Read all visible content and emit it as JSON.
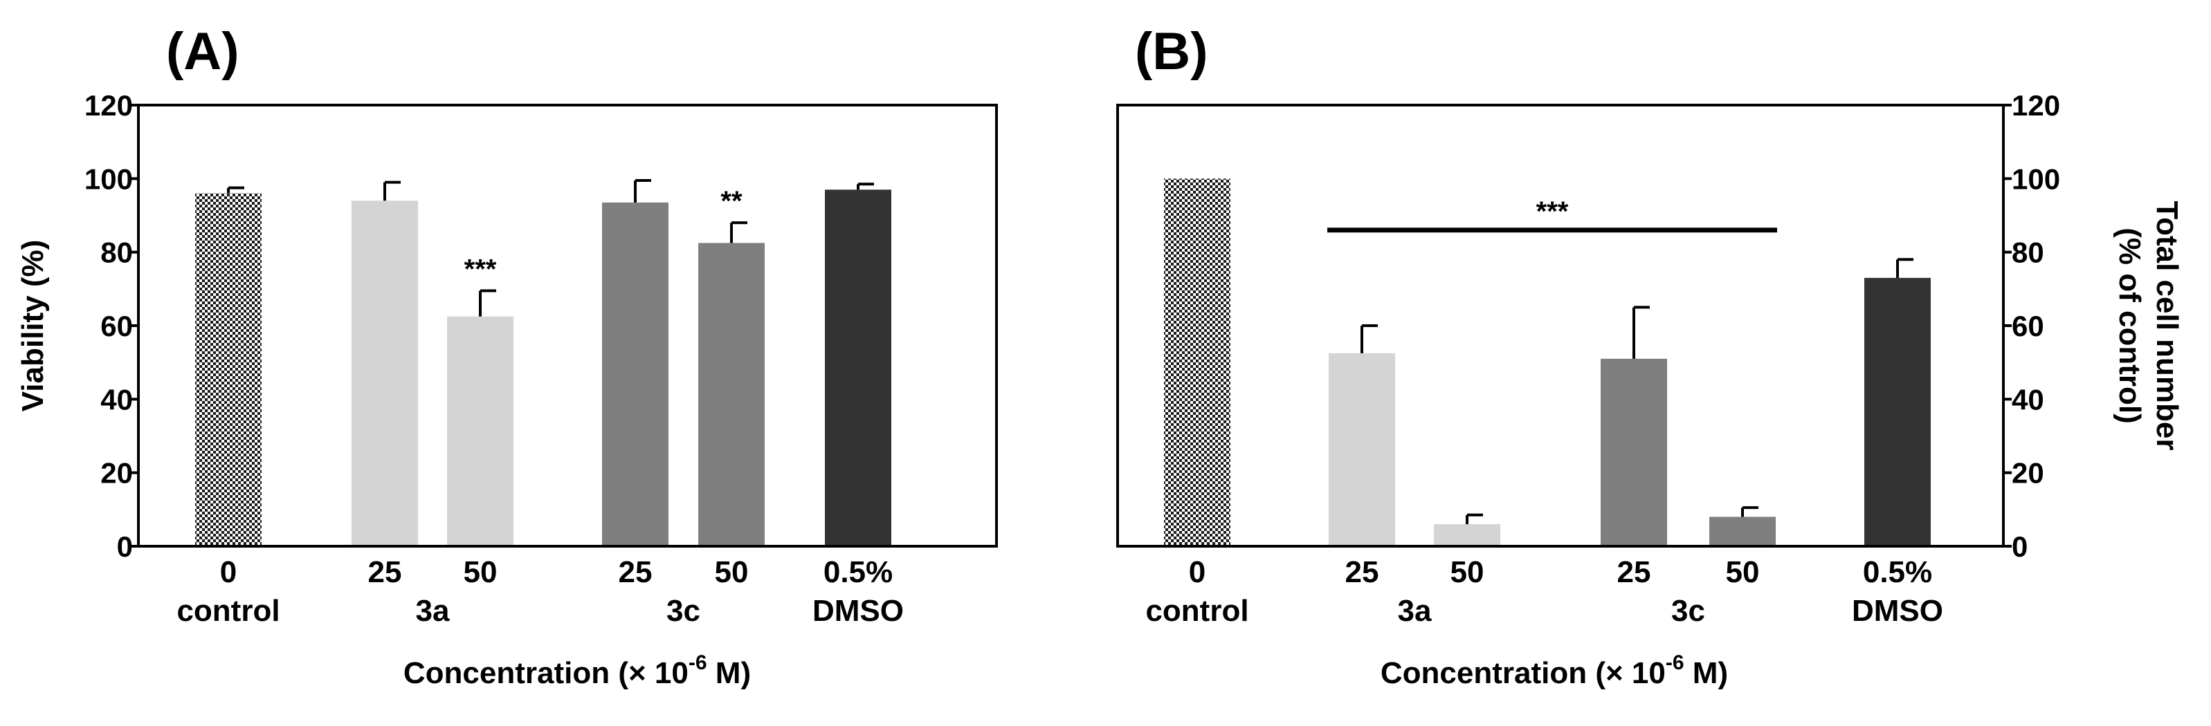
{
  "chart_data": [
    {
      "panel_label": "(A)",
      "type": "bar",
      "ylabel": "Viability (%)",
      "xlabel_pre": "Concentration (",
      "xlabel_times": "×",
      "xlabel_base": " 10",
      "xlabel_exp": "-6",
      "xlabel_post": " M)",
      "ylim": [
        0,
        120
      ],
      "yticks": [
        "0",
        "20",
        "40",
        "60",
        "80",
        "100",
        "120"
      ],
      "grid": false,
      "bars": [
        {
          "concentration": "0",
          "value": 96,
          "error": 1.5,
          "significance": "",
          "fill": "pattern"
        },
        {
          "concentration": "25",
          "value": 94,
          "error": 5,
          "significance": "",
          "fill": "#d4d4d4"
        },
        {
          "concentration": "50",
          "value": 62.5,
          "error": 7,
          "significance": "***",
          "fill": "#d4d4d4"
        },
        {
          "concentration": "25",
          "value": 93.5,
          "error": 6,
          "significance": "",
          "fill": "#7f7f7f"
        },
        {
          "concentration": "50",
          "value": 82.5,
          "error": 5.5,
          "significance": "**",
          "fill": "#7f7f7f"
        },
        {
          "concentration": "0.5%",
          "value": 97,
          "error": 1.5,
          "significance": "",
          "fill": "#333333"
        }
      ],
      "groups": [
        {
          "name": "control",
          "bars": [
            0
          ]
        },
        {
          "name": "3a",
          "bars": [
            1,
            2
          ]
        },
        {
          "name": "3c",
          "bars": [
            3,
            4
          ]
        },
        {
          "name": "DMSO",
          "bars": [
            5
          ]
        }
      ],
      "overall_significance": null
    },
    {
      "panel_label": "(B)",
      "type": "bar",
      "ylabel_line1": "Total cell number",
      "ylabel_line2": "(% of control)",
      "xlabel_pre": "Concentration (",
      "xlabel_times": "×",
      "xlabel_base": " 10",
      "xlabel_exp": "-6",
      "xlabel_post": " M)",
      "ylim": [
        0,
        120
      ],
      "yticks": [
        "0",
        "20",
        "40",
        "60",
        "80",
        "100",
        "120"
      ],
      "y_axis_side": "right",
      "grid": false,
      "bars": [
        {
          "concentration": "0",
          "value": 100,
          "error": 0,
          "significance": "",
          "fill": "pattern"
        },
        {
          "concentration": "25",
          "value": 52.5,
          "error": 7.5,
          "significance": "",
          "fill": "#d4d4d4"
        },
        {
          "concentration": "50",
          "value": 6,
          "error": 2.5,
          "significance": "",
          "fill": "#d4d4d4"
        },
        {
          "concentration": "25",
          "value": 51,
          "error": 14,
          "significance": "",
          "fill": "#7f7f7f"
        },
        {
          "concentration": "50",
          "value": 8,
          "error": 2.5,
          "significance": "",
          "fill": "#7f7f7f"
        },
        {
          "concentration": "0.5%",
          "value": 73,
          "error": 5,
          "significance": "",
          "fill": "#333333"
        }
      ],
      "groups": [
        {
          "name": "control",
          "bars": [
            0
          ]
        },
        {
          "name": "3a",
          "bars": [
            1,
            2
          ]
        },
        {
          "name": "3c",
          "bars": [
            3,
            4
          ]
        },
        {
          "name": "DMSO",
          "bars": [
            5
          ]
        }
      ],
      "overall_significance": {
        "label": "***",
        "level": 86,
        "from_bar": 1,
        "to_bar": 4
      }
    }
  ]
}
